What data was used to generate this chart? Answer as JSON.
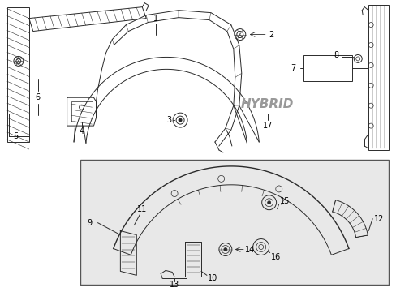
{
  "bg_color": "#ffffff",
  "line_color": "#2a2a2a",
  "fig_width": 4.89,
  "fig_height": 3.6,
  "dpi": 100,
  "hybrid_color": "#999999",
  "box_fill": "#e8e8e8",
  "box_edge": "#555555"
}
